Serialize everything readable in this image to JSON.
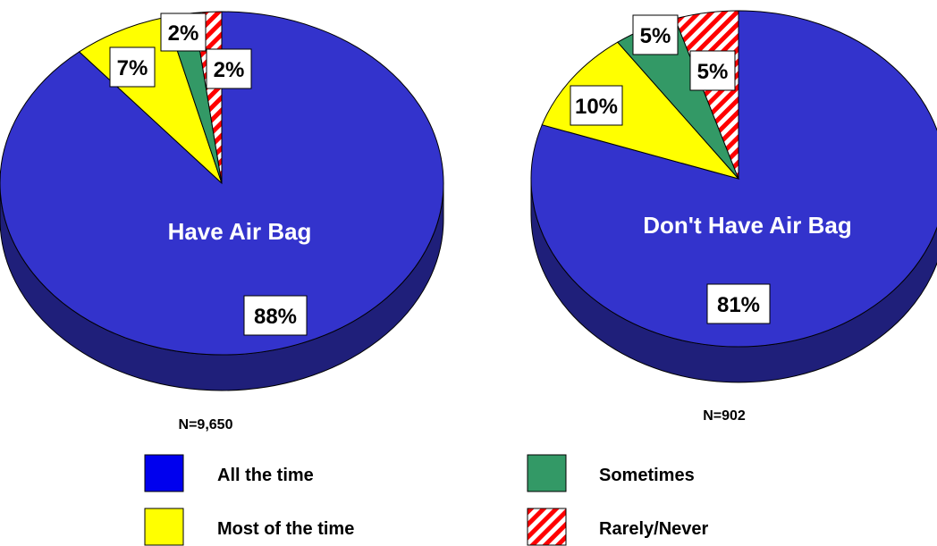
{
  "chart_data": [
    {
      "type": "pie",
      "title": "Have Air Bag",
      "n_label": "N=9,650",
      "categories": [
        "All the time",
        "Most of the time",
        "Sometimes",
        "Rarely/Never"
      ],
      "values": [
        88,
        7,
        2,
        2
      ],
      "value_labels": [
        "88%",
        "7%",
        "2%",
        "2%"
      ]
    },
    {
      "type": "pie",
      "title": "Don't Have Air Bag",
      "n_label": "N=902",
      "categories": [
        "All the time",
        "Most of the time",
        "Sometimes",
        "Rarely/Never"
      ],
      "values": [
        81,
        10,
        5,
        5
      ],
      "value_labels": [
        "81%",
        "10%",
        "5%",
        "5%"
      ]
    }
  ],
  "legend": {
    "items": [
      {
        "label": "All the time",
        "color": "#3333cc"
      },
      {
        "label": "Sometimes",
        "color": "#339966"
      },
      {
        "label": "Most of the time",
        "color": "#ffff00"
      },
      {
        "label": "Rarely/Never",
        "color": "#ff0000",
        "pattern": "hatched"
      }
    ]
  },
  "colors": {
    "all_the_time": "#3333cc",
    "all_the_time_side": "#1f1f7a",
    "most_of_the_time": "#ffff00",
    "sometimes": "#339966",
    "rarely_never": "#ff0000",
    "title_text": "#ffffff"
  }
}
